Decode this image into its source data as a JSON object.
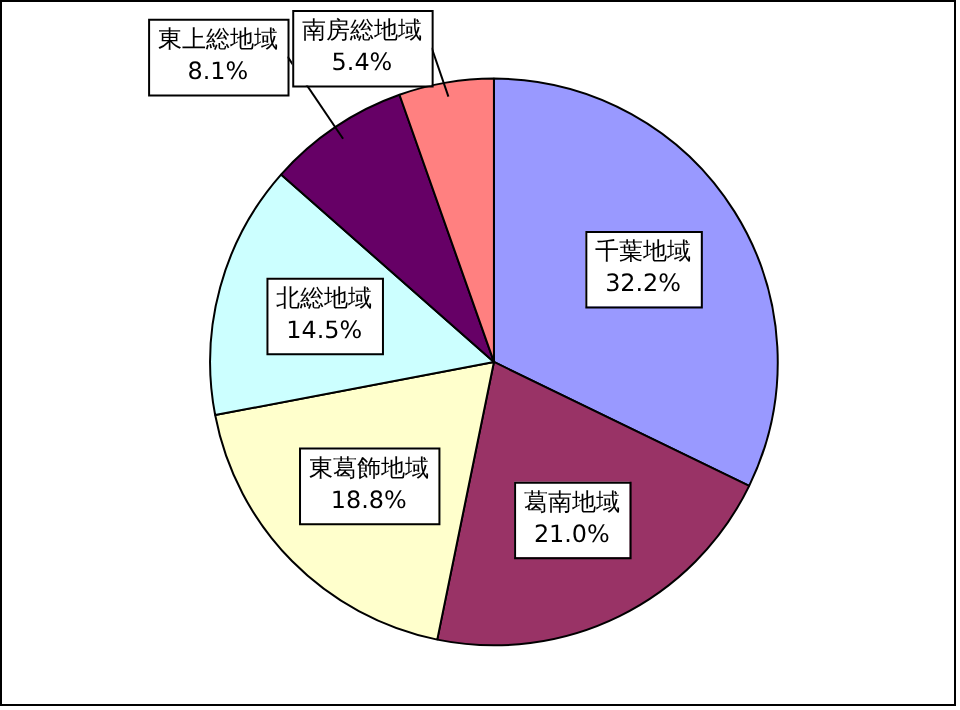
{
  "chart_data": {
    "type": "pie",
    "categories": [
      "千葉地域",
      "葛南地域",
      "東葛飾地域",
      "北総地域",
      "東上総地域",
      "南房総地域"
    ],
    "values": [
      32.2,
      21.0,
      18.8,
      14.5,
      8.1,
      5.4
    ],
    "value_labels": [
      "32.2%",
      "21.0%",
      "18.8%",
      "14.5%",
      "8.1%",
      "5.4%"
    ],
    "colors": [
      "#9999ff",
      "#993366",
      "#ffffcc",
      "#ccffff",
      "#660066",
      "#ff8080"
    ],
    "legend": false
  }
}
